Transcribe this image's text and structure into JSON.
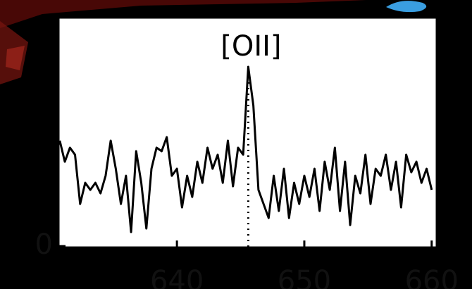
{
  "chart_data": {
    "type": "line",
    "annotations": [
      {
        "text": "[OII]",
        "x": 645.6
      }
    ],
    "x": [
      630.8,
      631.2,
      631.6,
      632.0,
      632.4,
      632.8,
      633.2,
      633.6,
      634.0,
      634.4,
      634.8,
      635.2,
      635.6,
      636.0,
      636.4,
      636.8,
      637.2,
      637.6,
      638.0,
      638.4,
      638.8,
      639.2,
      639.6,
      640.0,
      640.4,
      640.8,
      641.2,
      641.6,
      642.0,
      642.4,
      642.8,
      643.2,
      643.6,
      644.0,
      644.4,
      644.8,
      645.2,
      645.6,
      646.0,
      646.4,
      646.8,
      647.2,
      647.6,
      648.0,
      648.4,
      648.8,
      649.2,
      649.6,
      650.0,
      650.4,
      650.8,
      651.2,
      651.6,
      652.0,
      652.4,
      652.8,
      653.2,
      653.6,
      654.0,
      654.4,
      654.8,
      655.2,
      655.6,
      656.0,
      656.4,
      656.8,
      657.2,
      657.6,
      658.0,
      658.4,
      658.8,
      659.2,
      659.6,
      660.0
    ],
    "series": [
      {
        "color": "#000000",
        "values": [
          1.5,
          1.2,
          1.4,
          1.3,
          0.6,
          0.9,
          0.8,
          0.9,
          0.75,
          1.0,
          1.5,
          1.1,
          0.6,
          1.0,
          0.2,
          1.35,
          0.9,
          0.25,
          1.1,
          1.4,
          1.35,
          1.55,
          1.0,
          1.1,
          0.55,
          1.0,
          0.7,
          1.2,
          0.9,
          1.4,
          1.1,
          1.3,
          0.9,
          1.5,
          0.85,
          1.4,
          1.3,
          2.55,
          2.0,
          0.8,
          0.6,
          0.4,
          1.0,
          0.5,
          1.1,
          0.4,
          0.9,
          0.6,
          1.0,
          0.7,
          1.1,
          0.5,
          1.2,
          0.8,
          1.4,
          0.5,
          1.2,
          0.3,
          1.0,
          0.75,
          1.3,
          0.6,
          1.1,
          1.0,
          1.3,
          0.8,
          1.2,
          0.55,
          1.3,
          1.05,
          1.2,
          0.9,
          1.1,
          0.8
        ]
      }
    ],
    "xlim": [
      630.7,
      660.4
    ],
    "ylim": [
      -0.02,
      3.25
    ],
    "xticks": [
      640,
      650,
      660
    ],
    "yticks": [
      0
    ],
    "grid": false
  }
}
